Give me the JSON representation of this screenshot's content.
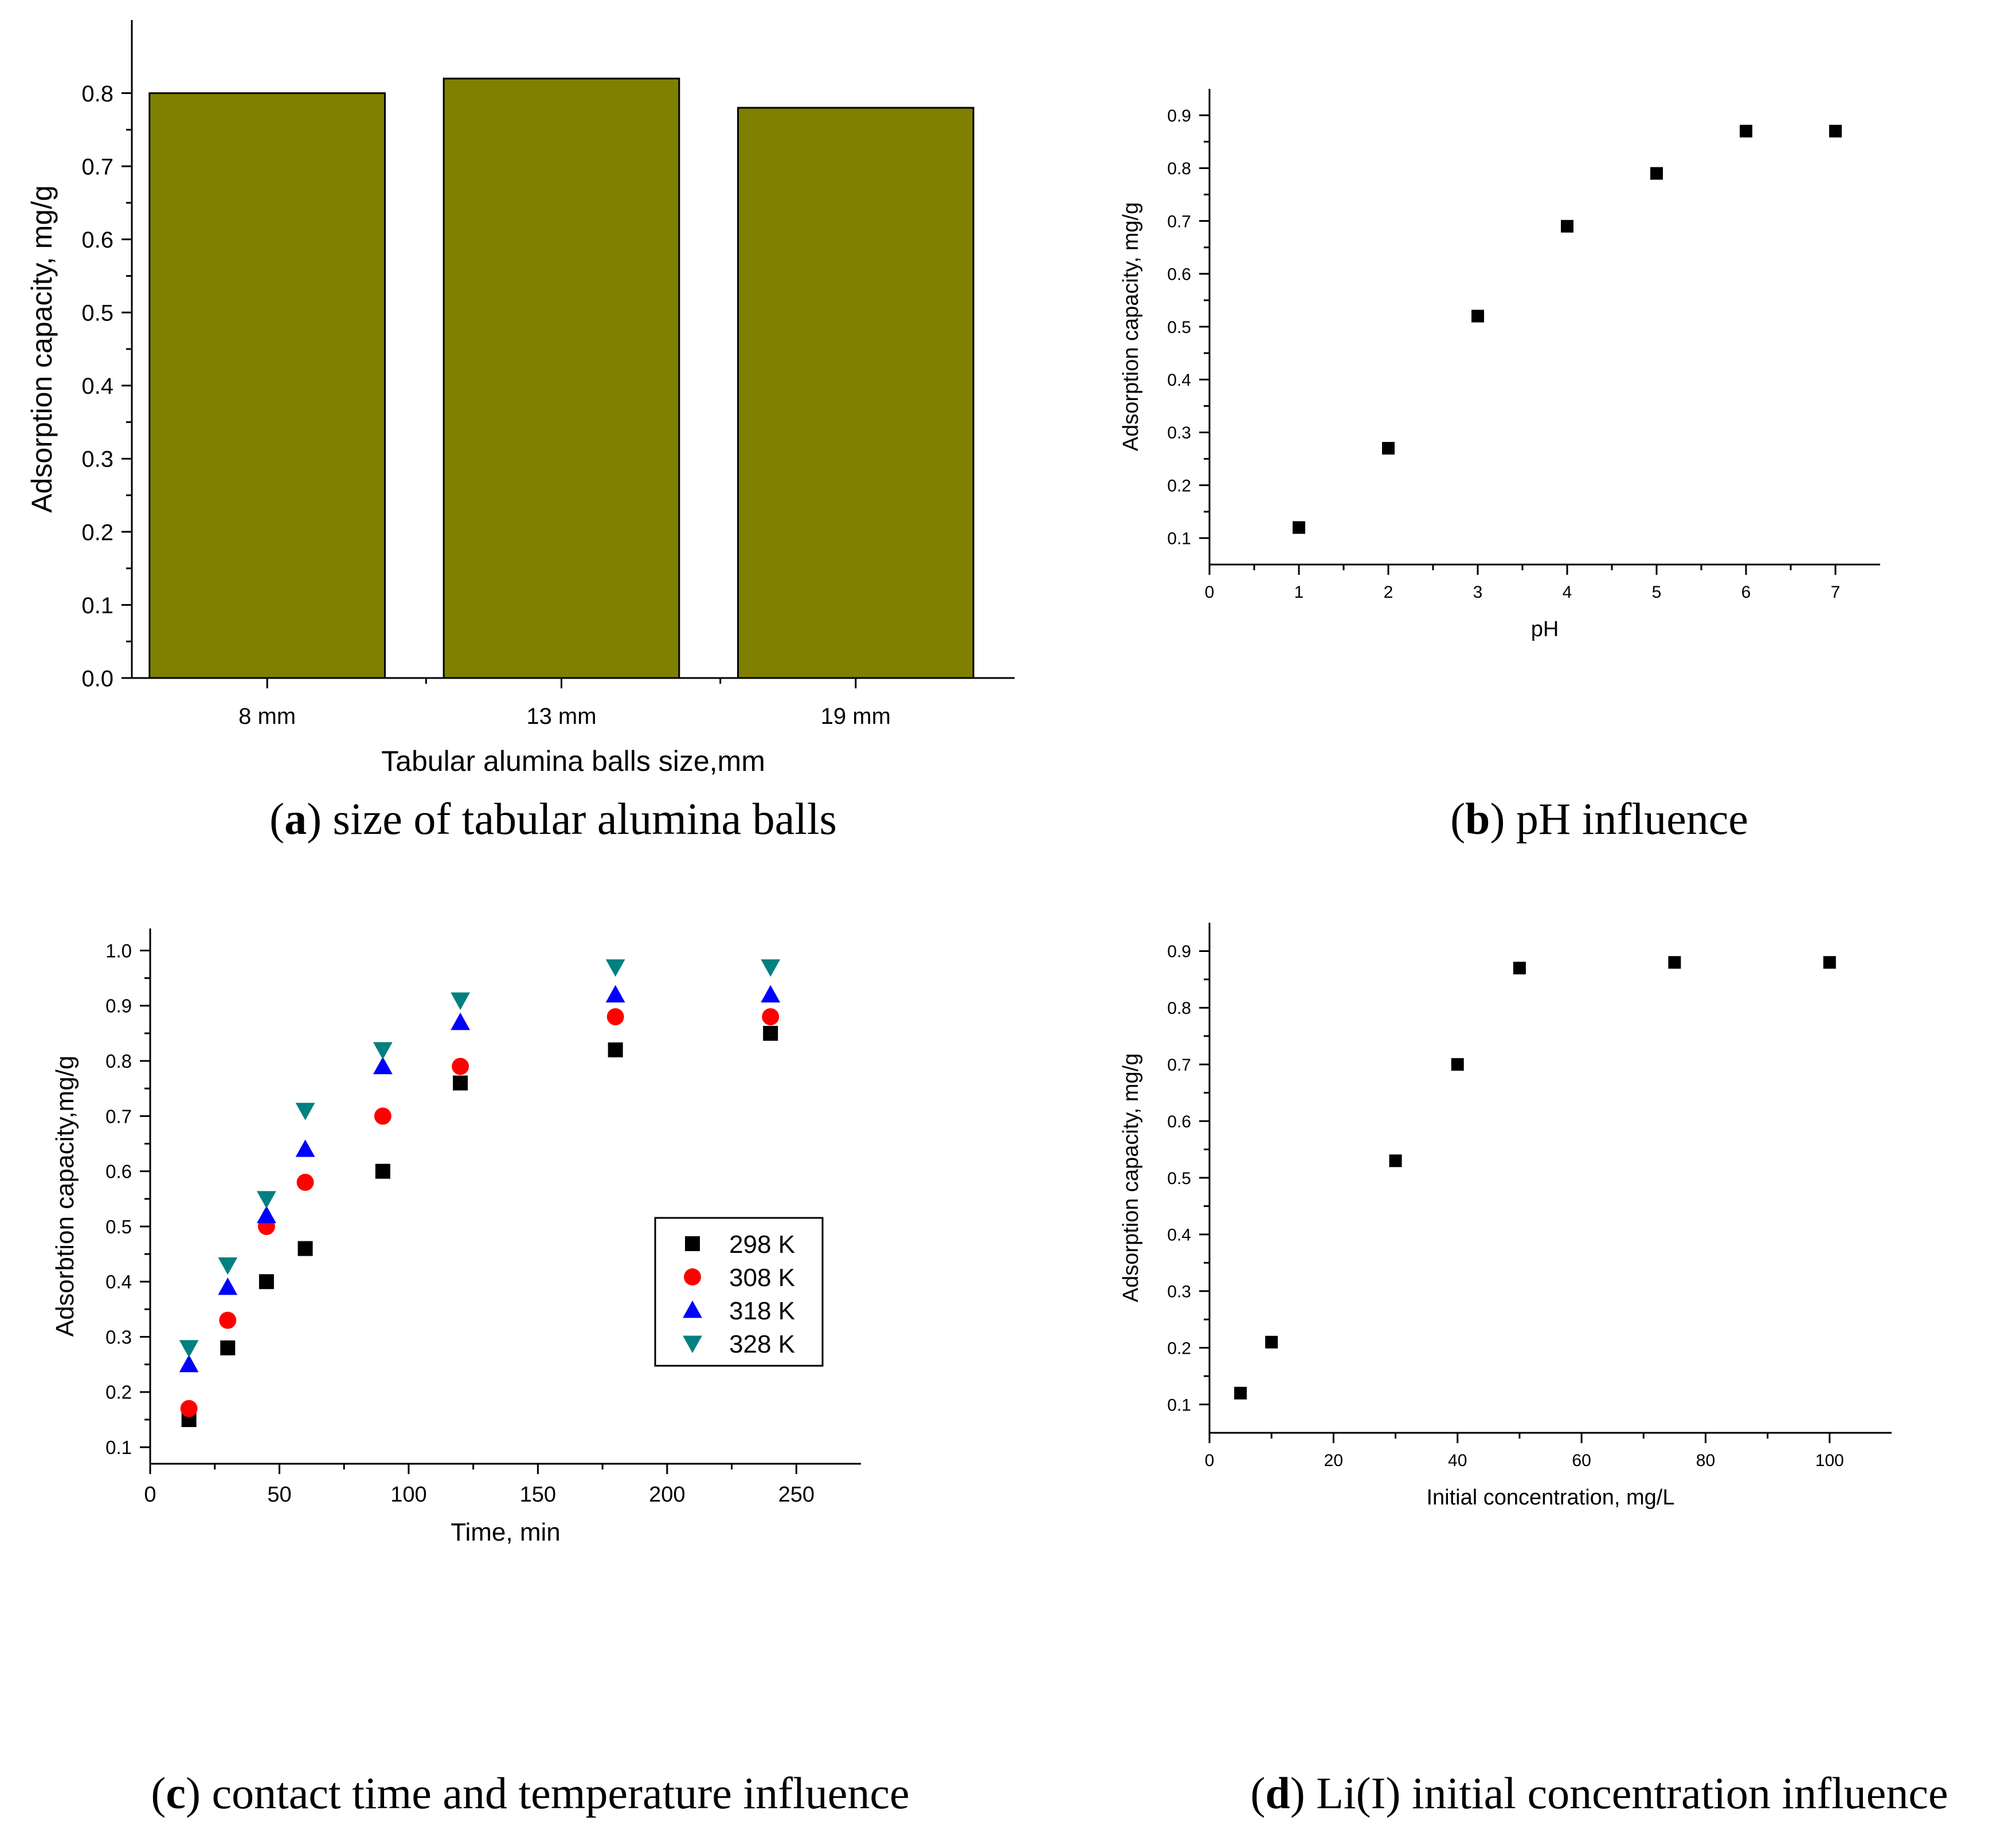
{
  "chart_data": [
    {
      "panel": "a",
      "type": "bar",
      "categories": [
        "8 mm",
        "13 mm",
        "19 mm"
      ],
      "values": [
        0.8,
        0.82,
        0.78
      ],
      "xlabel": "Tabular alumina balls size,mm",
      "ylabel": "Adsorption capacity, mg/g",
      "ylim": [
        0.0,
        0.9
      ],
      "yticks": [
        "0.0",
        "0.1",
        "0.2",
        "0.3",
        "0.4",
        "0.5",
        "0.6",
        "0.7",
        "0.8"
      ],
      "bar_color": "#808000",
      "caption_label": "a",
      "caption_text": " size of tabular alumina balls"
    },
    {
      "panel": "b",
      "type": "scatter",
      "xlabel": "pH",
      "ylabel": "Adsorption capacity, mg/g",
      "xlim": [
        0,
        7.5
      ],
      "ylim": [
        0.05,
        0.95
      ],
      "xticks": [
        "0",
        "1",
        "2",
        "3",
        "4",
        "5",
        "6",
        "7"
      ],
      "yticks": [
        "0.1",
        "0.2",
        "0.3",
        "0.4",
        "0.5",
        "0.6",
        "0.7",
        "0.8",
        "0.9"
      ],
      "series": [
        {
          "marker": "square",
          "color": "#000000",
          "x": [
            1,
            2,
            3,
            4,
            5,
            6,
            7
          ],
          "y": [
            0.12,
            0.27,
            0.52,
            0.69,
            0.79,
            0.87,
            0.87
          ]
        }
      ],
      "caption_label": "b",
      "caption_text": " pH influence"
    },
    {
      "panel": "c",
      "type": "scatter",
      "xlabel": "Time, min",
      "ylabel": "Adsorbtion capacity,mg/g",
      "xlim": [
        0,
        275
      ],
      "ylim": [
        0.07,
        1.04
      ],
      "xticks": [
        "0",
        "50",
        "100",
        "150",
        "200",
        "250"
      ],
      "yticks": [
        "0.1",
        "0.2",
        "0.3",
        "0.4",
        "0.5",
        "0.6",
        "0.7",
        "0.8",
        "0.9",
        "1.0"
      ],
      "legend_position": "center-right",
      "series": [
        {
          "name": "298 K",
          "marker": "square",
          "color": "#000000",
          "x": [
            15,
            30,
            45,
            60,
            90,
            120,
            180,
            240
          ],
          "y": [
            0.15,
            0.28,
            0.4,
            0.46,
            0.6,
            0.76,
            0.82,
            0.85
          ]
        },
        {
          "name": "308 K",
          "marker": "circle",
          "color": "#ff0000",
          "x": [
            15,
            30,
            45,
            60,
            90,
            120,
            180,
            240
          ],
          "y": [
            0.17,
            0.33,
            0.5,
            0.58,
            0.7,
            0.79,
            0.88,
            0.88
          ]
        },
        {
          "name": "318 K",
          "marker": "triangle-up",
          "color": "#0000ff",
          "x": [
            15,
            30,
            45,
            60,
            90,
            120,
            180,
            240
          ],
          "y": [
            0.25,
            0.39,
            0.52,
            0.64,
            0.79,
            0.87,
            0.92,
            0.92
          ]
        },
        {
          "name": "328 K",
          "marker": "triangle-down",
          "color": "#008080",
          "x": [
            15,
            30,
            45,
            60,
            90,
            120,
            180,
            240
          ],
          "y": [
            0.28,
            0.43,
            0.55,
            0.71,
            0.82,
            0.91,
            0.97,
            0.97
          ]
        }
      ],
      "caption_label": "c",
      "caption_text": " contact time and temperature influence"
    },
    {
      "panel": "d",
      "type": "scatter",
      "xlabel": "Initial concentration, mg/L",
      "ylabel": "Adsorption capacity, mg/g",
      "xlim": [
        0,
        110
      ],
      "ylim": [
        0.05,
        0.95
      ],
      "xticks": [
        "0",
        "20",
        "40",
        "60",
        "80",
        "100"
      ],
      "yticks": [
        "0.1",
        "0.2",
        "0.3",
        "0.4",
        "0.5",
        "0.6",
        "0.7",
        "0.8",
        "0.9"
      ],
      "series": [
        {
          "marker": "square",
          "color": "#000000",
          "x": [
            5,
            10,
            30,
            40,
            50,
            75,
            100
          ],
          "y": [
            0.12,
            0.21,
            0.53,
            0.7,
            0.87,
            0.88,
            0.88
          ]
        }
      ],
      "caption_label": "d",
      "caption_text": " Li(I) initial concentration influence"
    }
  ]
}
